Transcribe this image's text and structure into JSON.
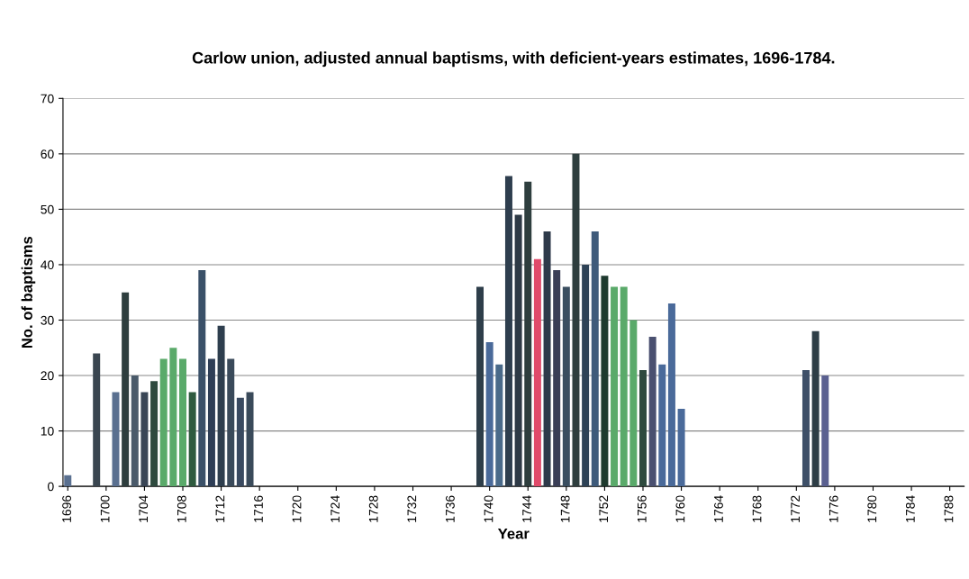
{
  "chart_data": {
    "type": "bar",
    "title": "Carlow union, adjusted annual baptisms, with deficient-years estimates, 1696-1784.",
    "xlabel": "Year",
    "ylabel": "No. of baptisms",
    "x": [
      1696,
      1699,
      1701,
      1702,
      1703,
      1704,
      1705,
      1706,
      1707,
      1708,
      1709,
      1710,
      1711,
      1712,
      1713,
      1714,
      1715,
      1739,
      1740,
      1741,
      1742,
      1743,
      1744,
      1745,
      1746,
      1747,
      1748,
      1749,
      1750,
      1751,
      1752,
      1753,
      1754,
      1755,
      1756,
      1757,
      1758,
      1759,
      1760,
      1773,
      1774,
      1775
    ],
    "values": [
      2,
      24,
      17,
      35,
      20,
      17,
      19,
      23,
      25,
      23,
      17,
      39,
      23,
      29,
      23,
      16,
      17,
      36,
      26,
      22,
      56,
      49,
      55,
      41,
      46,
      39,
      36,
      60,
      40,
      46,
      38,
      36,
      36,
      30,
      21,
      27,
      22,
      33,
      14,
      21,
      28,
      20
    ],
    "colors": [
      "#5a7090",
      "#3a4650",
      "#5a7090",
      "#2e3e3e",
      "#4a5a6a",
      "#3a4656",
      "#2e4a3e",
      "#5aaa6a",
      "#5aaa6a",
      "#5aaa6a",
      "#2e5a3e",
      "#3a5068",
      "#2e3e56",
      "#2e3e4e",
      "#3a4a5a",
      "#3a4a60",
      "#3a4a5a",
      "#2e3e4a",
      "#4a6a9a",
      "#4a6a8a",
      "#2e3e4e",
      "#2e3a46",
      "#2e3e3e",
      "#e04a6a",
      "#2e3a4a",
      "#3a3e56",
      "#3a4e60",
      "#2e3e3e",
      "#2e4256",
      "#3e5a7a",
      "#1e3a2e",
      "#5aaa6a",
      "#5aaa6a",
      "#5aaa6a",
      "#2e4a3e",
      "#4a5070",
      "#4a6a9a",
      "#4a6a9a",
      "#4a6a9a",
      "#3e5068",
      "#2e3e46",
      "#5a6090"
    ],
    "xlim": [
      1695.5,
      1789.5
    ],
    "xticks": [
      1696,
      1700,
      1704,
      1708,
      1712,
      1716,
      1720,
      1724,
      1728,
      1732,
      1736,
      1740,
      1744,
      1748,
      1752,
      1756,
      1760,
      1764,
      1768,
      1772,
      1776,
      1780,
      1784,
      1788
    ],
    "ylim": [
      0,
      70
    ],
    "yticks": [
      0,
      10,
      20,
      30,
      40,
      50,
      60,
      70
    ],
    "grid": "y"
  }
}
